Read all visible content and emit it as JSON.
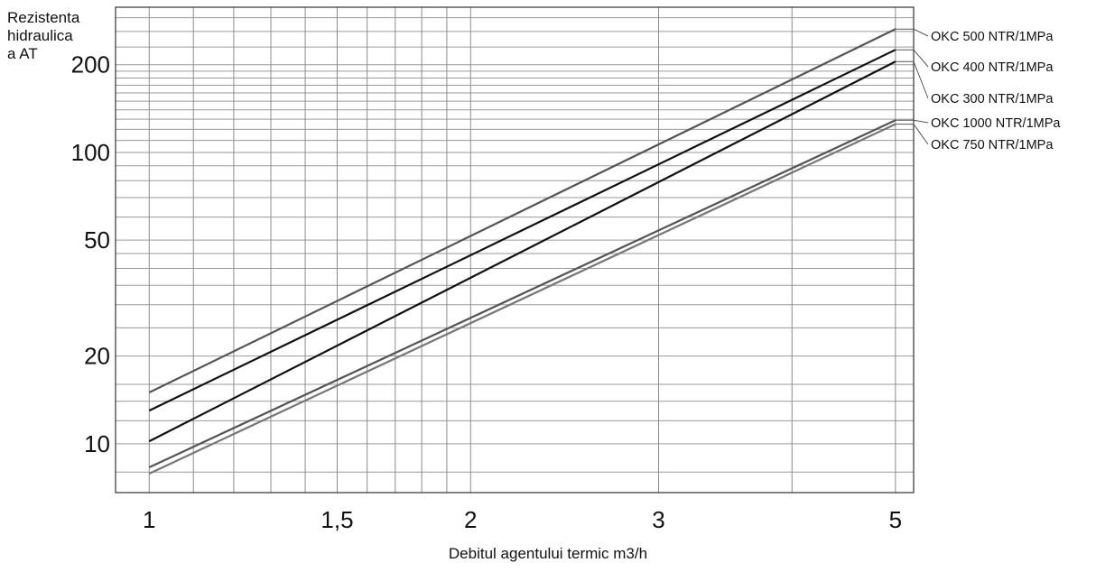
{
  "chart_data": {
    "type": "line",
    "ylabel_lines": [
      "Rezistenta",
      "hidraulica",
      "a AT"
    ],
    "xlabel": "Debitul agentului termic m3/h",
    "x_scale": "log",
    "y_scale": "log",
    "xlim": [
      0.93,
      5.2
    ],
    "ylim": [
      6.8,
      315
    ],
    "x_ticks": [
      {
        "value": 1,
        "label": "1"
      },
      {
        "value": 1.5,
        "label": "1,5"
      },
      {
        "value": 2,
        "label": "2"
      },
      {
        "value": 3,
        "label": "3"
      },
      {
        "value": 5,
        "label": "5"
      }
    ],
    "y_ticks": [
      {
        "value": 10,
        "label": "10"
      },
      {
        "value": 20,
        "label": "20"
      },
      {
        "value": 50,
        "label": "50"
      },
      {
        "value": 100,
        "label": "100"
      },
      {
        "value": 200,
        "label": "200"
      }
    ],
    "x_grid": [
      1,
      1.1,
      1.2,
      1.3,
      1.4,
      1.5,
      1.6,
      1.7,
      1.8,
      1.9,
      2,
      3,
      4,
      5
    ],
    "y_grid": [
      8,
      10,
      12,
      14,
      16,
      20,
      25,
      30,
      35,
      40,
      45,
      50,
      60,
      70,
      80,
      90,
      100,
      110,
      120,
      130,
      140,
      150,
      160,
      170,
      180,
      190,
      200,
      230,
      260,
      290
    ],
    "grid": true,
    "legend": "right, labels connected to line ends",
    "series": [
      {
        "name": "OKC 500 NTR/1MPa",
        "x": [
          1,
          5
        ],
        "y": [
          15,
          265
        ],
        "color": "#555555"
      },
      {
        "name": "OKC 400 NTR/1MPa",
        "x": [
          1,
          5
        ],
        "y": [
          13,
          225
        ],
        "color": "#111111"
      },
      {
        "name": "OKC 300 NTR/1MPa",
        "x": [
          1,
          5
        ],
        "y": [
          10.2,
          205
        ],
        "color": "#111111"
      },
      {
        "name": "OKC 1000 NTR/1MPa",
        "x": [
          1,
          5
        ],
        "y": [
          8.3,
          129
        ],
        "color": "#555555"
      },
      {
        "name": "OKC 750 NTR/1MPa",
        "x": [
          1,
          5
        ],
        "y": [
          7.9,
          125
        ],
        "color": "#777777"
      }
    ]
  }
}
